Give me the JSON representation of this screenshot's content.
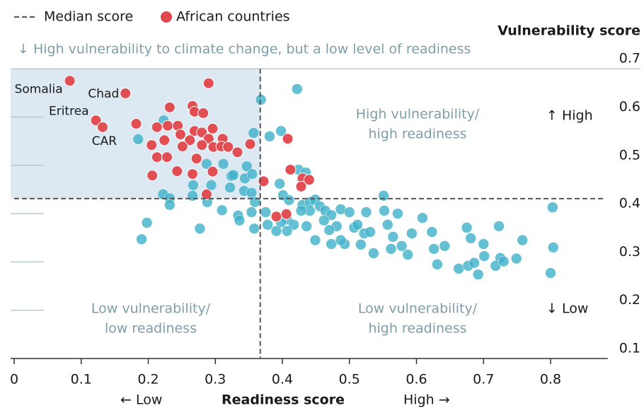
{
  "chart_data": {
    "type": "scatter",
    "y_axis_label": "Vulnerability score",
    "x_axis_label": "Readiness score",
    "x_low": "← Low",
    "x_high": "High →",
    "y_high": "↑ High",
    "y_low": "↓ Low",
    "annotation": "↓ High vulnerability to climate change, but a low level of readiness",
    "quadrants": [
      [
        "High vulnerability/",
        "high readiness"
      ],
      [
        "Low vulnerability/",
        "low readiness"
      ],
      [
        "Low vulnerability/",
        "high readiness"
      ]
    ],
    "median": {
      "name": "Median score",
      "x": 0.367,
      "y": 0.431,
      "color": "#555555"
    },
    "xlim": [
      0,
      0.88
    ],
    "ylim": [
      0.1,
      0.7
    ],
    "xticks": [
      0,
      0.1,
      0.2,
      0.3,
      0.4,
      0.5,
      0.6,
      0.7,
      0.8
    ],
    "yticks": [
      0.1,
      0.2,
      0.3,
      0.4,
      0.5,
      0.6,
      0.7
    ],
    "series": [
      {
        "color": "#3fb0c9",
        "x": [
          0.422,
          0.368,
          0.357,
          0.381,
          0.398,
          0.185,
          0.223,
          0.312,
          0.324,
          0.327,
          0.347,
          0.287,
          0.267,
          0.294,
          0.344,
          0.355,
          0.222,
          0.232,
          0.232,
          0.266,
          0.288,
          0.322,
          0.343,
          0.354,
          0.359,
          0.31,
          0.334,
          0.354,
          0.198,
          0.19,
          0.277,
          0.336,
          0.358,
          0.378,
          0.375,
          0.396,
          0.424,
          0.435,
          0.401,
          0.41,
          0.43,
          0.441,
          0.449,
          0.456,
          0.441,
          0.428,
          0.464,
          0.473,
          0.487,
          0.5,
          0.481,
          0.47,
          0.473,
          0.493,
          0.507,
          0.512,
          0.525,
          0.522,
          0.531,
          0.517,
          0.536,
          0.552,
          0.551,
          0.557,
          0.565,
          0.572,
          0.578,
          0.562,
          0.587,
          0.593,
          0.609,
          0.623,
          0.626,
          0.642,
          0.631,
          0.663,
          0.675,
          0.681,
          0.677,
          0.686,
          0.7,
          0.701,
          0.692,
          0.723,
          0.725,
          0.718,
          0.73,
          0.758,
          0.749,
          0.803,
          0.804,
          0.8,
          0.449,
          0.487,
          0.462,
          0.436,
          0.407,
          0.398,
          0.417,
          0.407,
          0.391
        ],
        "values": [
          0.658,
          0.636,
          0.567,
          0.56,
          0.571,
          0.554,
          0.593,
          0.503,
          0.478,
          0.48,
          0.498,
          0.503,
          0.459,
          0.459,
          0.473,
          0.482,
          0.44,
          0.432,
          0.418,
          0.437,
          0.424,
          0.454,
          0.447,
          0.443,
          0.424,
          0.407,
          0.396,
          0.403,
          0.381,
          0.347,
          0.369,
          0.386,
          0.369,
          0.377,
          0.403,
          0.462,
          0.491,
          0.485,
          0.438,
          0.428,
          0.418,
          0.424,
          0.429,
          0.415,
          0.406,
          0.406,
          0.406,
          0.397,
          0.409,
          0.403,
          0.374,
          0.366,
          0.337,
          0.337,
          0.371,
          0.377,
          0.403,
          0.359,
          0.362,
          0.336,
          0.318,
          0.406,
          0.437,
          0.377,
          0.352,
          0.4,
          0.333,
          0.327,
          0.315,
          0.359,
          0.391,
          0.362,
          0.327,
          0.333,
          0.295,
          0.286,
          0.371,
          0.349,
          0.292,
          0.298,
          0.337,
          0.312,
          0.274,
          0.374,
          0.308,
          0.292,
          0.301,
          0.345,
          0.307,
          0.413,
          0.33,
          0.277,
          0.345,
          0.345,
          0.386,
          0.374,
          0.388,
          0.382,
          0.377,
          0.364,
          0.364
        ]
      },
      {
        "name": "African countries",
        "color": "#e0474c",
        "labels": [
          "Somalia",
          "Chad",
          "Eritrea",
          "CAR"
        ],
        "x": [
          0.083,
          0.166,
          0.122,
          0.132,
          0.29,
          0.182,
          0.232,
          0.266,
          0.269,
          0.282,
          0.213,
          0.229,
          0.244,
          0.269,
          0.28,
          0.296,
          0.248,
          0.262,
          0.29,
          0.311,
          0.224,
          0.205,
          0.251,
          0.28,
          0.297,
          0.309,
          0.319,
          0.352,
          0.333,
          0.213,
          0.228,
          0.272,
          0.206,
          0.243,
          0.266,
          0.296,
          0.287,
          0.408,
          0.412,
          0.372,
          0.43,
          0.44,
          0.428,
          0.391,
          0.406
        ],
        "values": [
          0.675,
          0.649,
          0.593,
          0.579,
          0.67,
          0.586,
          0.62,
          0.623,
          0.611,
          0.608,
          0.579,
          0.582,
          0.582,
          0.571,
          0.568,
          0.576,
          0.564,
          0.552,
          0.555,
          0.555,
          0.552,
          0.542,
          0.539,
          0.542,
          0.538,
          0.539,
          0.538,
          0.544,
          0.527,
          0.517,
          0.517,
          0.514,
          0.479,
          0.488,
          0.482,
          0.487,
          0.44,
          0.555,
          0.491,
          0.467,
          0.473,
          0.47,
          0.456,
          0.394,
          0.399
        ]
      }
    ]
  }
}
